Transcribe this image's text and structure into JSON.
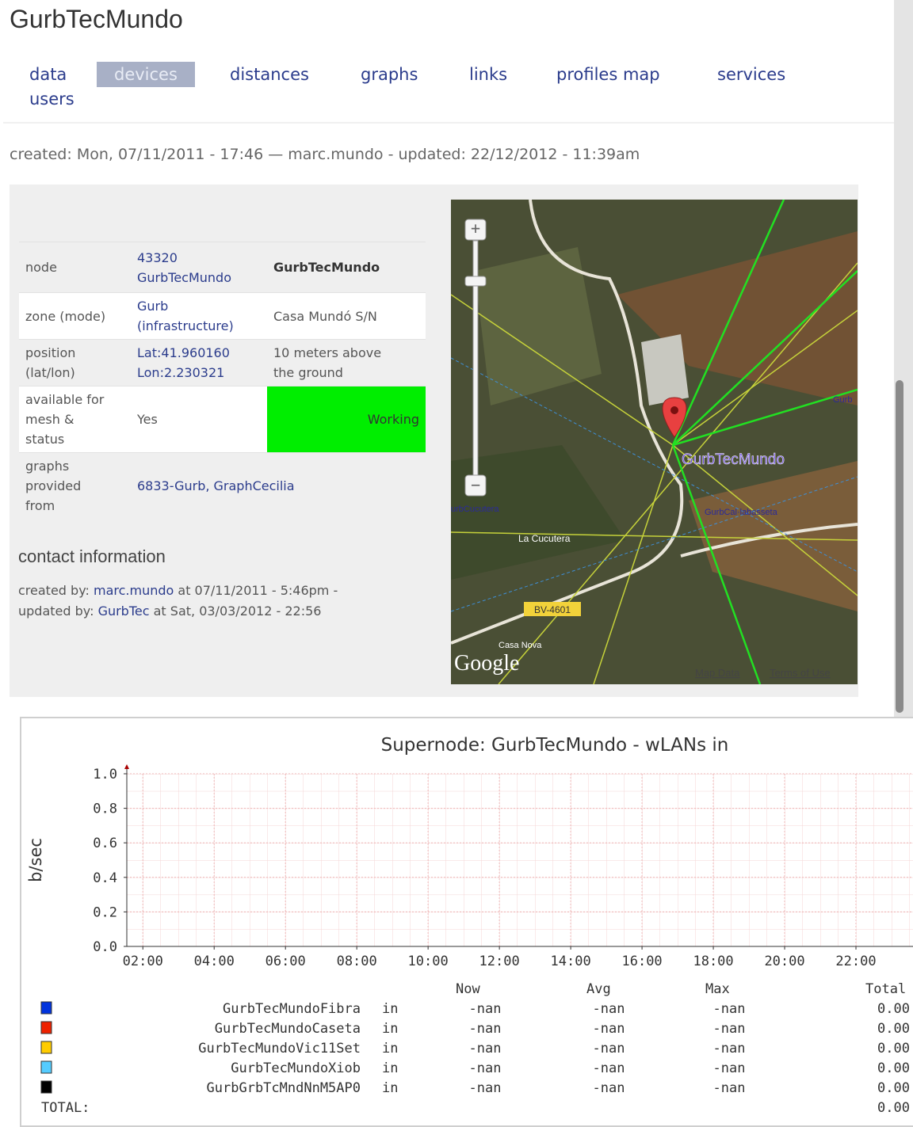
{
  "header": {
    "title": "GurbTecMundo",
    "tabs": [
      "data",
      "devices",
      "distances",
      "graphs",
      "links",
      "profiles map",
      "services",
      "users"
    ],
    "active_tab": 1
  },
  "meta": "created: Mon, 07/11/2011 - 17:46 — marc.mundo - updated: 22/12/2012 - 11:39am",
  "info": {
    "rows": [
      {
        "label": [
          "node"
        ],
        "value": [
          "43320",
          "GurbTecMundo"
        ],
        "extra": [
          "GurbTecMundo"
        ]
      },
      {
        "label": [
          "zone (mode)"
        ],
        "value": [
          "Gurb",
          "(infrastructure)"
        ],
        "extra": [
          "Casa Mundó S/N"
        ]
      },
      {
        "label": [
          "position",
          "(lat/lon)"
        ],
        "value": [
          "Lat:41.960160",
          "Lon:2.230321"
        ],
        "extra": [
          "10 meters above",
          "the ground"
        ]
      },
      {
        "label": [
          "available for",
          "mesh &",
          "status"
        ],
        "value": [
          "Yes"
        ],
        "extra": [
          "Working"
        ]
      },
      {
        "label": [
          "graphs",
          "provided",
          "from"
        ],
        "value": [
          "6833-Gurb, GraphCecilia"
        ],
        "extra": []
      }
    ]
  },
  "contact": {
    "heading": "contact information",
    "created_prefix": "created by:",
    "created_user": "marc.mundo",
    "created_at": "at 07/11/2011 - 5:46pm -",
    "updated_prefix": "updated by:",
    "updated_user": "GurbTec",
    "updated_at": "at Sat, 03/03/2012 - 22:56"
  },
  "map": {
    "node_label": "GurbTecMundo",
    "labels": [
      "urbCucutera",
      "GurbCal·labasseta",
      "La Cucutera",
      "Casa Nova",
      "Gurb"
    ],
    "road": "BV-4601",
    "brand": "Google",
    "map_data": "Map Data",
    "terms": "Terms of Use"
  },
  "chart_data": {
    "type": "line",
    "title": "Supernode: GurbTecMundo - wLANs in",
    "y_label": "b/sec",
    "ylim": [
      0,
      1
    ],
    "yticks": [
      {
        "value": 0,
        "label": "0.0"
      },
      {
        "value": 0.2,
        "label": "0.2"
      },
      {
        "value": 0.4,
        "label": "0.4"
      },
      {
        "value": 0.6,
        "label": "0.6"
      },
      {
        "value": 0.8,
        "label": "0.8"
      },
      {
        "value": 1,
        "label": "1.0"
      }
    ],
    "xlim": [
      1.55,
      23.6
    ],
    "xticks": [
      {
        "value": 2,
        "label": "02:00"
      },
      {
        "value": 4,
        "label": "04:00"
      },
      {
        "value": 6,
        "label": "06:00"
      },
      {
        "value": 8,
        "label": "08:00"
      },
      {
        "value": 10,
        "label": "10:00"
      },
      {
        "value": 12,
        "label": "12:00"
      },
      {
        "value": 14,
        "label": "14:00"
      },
      {
        "value": 16,
        "label": "16:00"
      },
      {
        "value": 18,
        "label": "18:00"
      },
      {
        "value": 20,
        "label": "20:00"
      },
      {
        "value": 22,
        "label": "22:00"
      }
    ],
    "grid": true,
    "legend_headers": [
      "Now",
      "Avg",
      "Max",
      "Total"
    ],
    "series": [
      {
        "name": "GurbTecMundoFibra",
        "color": "#0033dd",
        "direction": "in",
        "now": "-nan",
        "avg": "-nan",
        "max": "-nan",
        "total": "0.00"
      },
      {
        "name": "GurbTecMundoCaseta",
        "color": "#ee2200",
        "direction": "in",
        "now": "-nan",
        "avg": "-nan",
        "max": "-nan",
        "total": "0.00"
      },
      {
        "name": "GurbTecMundoVic11Set",
        "color": "#ffcc00",
        "direction": "in",
        "now": "-nan",
        "avg": "-nan",
        "max": "-nan",
        "total": "0.00"
      },
      {
        "name": "GurbTecMundoXiob",
        "color": "#55ccff",
        "direction": "in",
        "now": "-nan",
        "avg": "-nan",
        "max": "-nan",
        "total": "0.00"
      },
      {
        "name": "GurbGrbTcMndNnM5AP0",
        "color": "#000000",
        "direction": "in",
        "now": "-nan",
        "avg": "-nan",
        "max": "-nan",
        "total": "0.00"
      }
    ],
    "total_label": "TOTAL:",
    "total_value": "0.00"
  }
}
